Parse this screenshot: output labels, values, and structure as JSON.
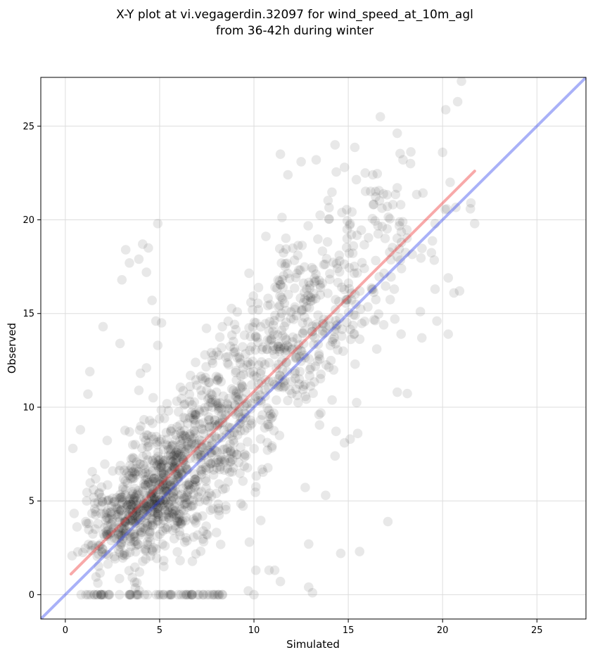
{
  "chart_data": {
    "type": "scatter",
    "title_line1": "X-Y plot at vi.vegagerdin.32097 for wind_speed_at_10m_agl",
    "title_line2": "from 36-42h during winter",
    "xlabel": "Simulated",
    "ylabel": "Observed",
    "xlim": [
      -1.3,
      27.6
    ],
    "ylim": [
      -1.3,
      27.6
    ],
    "xticks": [
      0,
      5,
      10,
      15,
      20,
      25
    ],
    "yticks": [
      0,
      5,
      10,
      15,
      20,
      25
    ],
    "grid": true,
    "point_color": "#000000",
    "point_alpha": 0.09,
    "regression_line": {
      "color": "#ee3333",
      "from": [
        0.3,
        1.1
      ],
      "to": [
        21.7,
        22.6
      ]
    },
    "identity_line": {
      "color": "#3344ee",
      "from": [
        -1.3,
        -1.3
      ],
      "to": [
        27.6,
        27.6
      ]
    },
    "clusters": [
      {
        "cx": 4.5,
        "cy": 5.0,
        "sx": 1.8,
        "sy": 2.0,
        "n": 700,
        "rho": 0.55
      },
      {
        "cx": 8.5,
        "cy": 9.5,
        "sx": 2.3,
        "sy": 3.0,
        "n": 450,
        "rho": 0.65
      },
      {
        "cx": 13.0,
        "cy": 15.0,
        "sx": 2.2,
        "sy": 3.0,
        "n": 320,
        "rho": 0.5
      },
      {
        "cx": 17.5,
        "cy": 19.5,
        "sx": 2.2,
        "sy": 3.0,
        "n": 70,
        "rho": 0.4
      }
    ],
    "points": [
      [
        20.8,
        26.3
      ],
      [
        16.7,
        25.5
      ],
      [
        14.3,
        24.0
      ],
      [
        11.4,
        23.5
      ],
      [
        13.3,
        23.2
      ],
      [
        12.5,
        23.1
      ],
      [
        17.9,
        23.2
      ],
      [
        20.0,
        23.6
      ],
      [
        14.8,
        22.8
      ],
      [
        15.9,
        22.5
      ],
      [
        11.8,
        22.4
      ],
      [
        16.3,
        22.4
      ],
      [
        18.3,
        23.0
      ],
      [
        19.6,
        19.8
      ],
      [
        21.7,
        19.8
      ],
      [
        21.5,
        20.9
      ],
      [
        20.4,
        22.0
      ],
      [
        0.4,
        7.8
      ],
      [
        0.8,
        8.8
      ],
      [
        1.3,
        11.9
      ],
      [
        1.2,
        10.7
      ],
      [
        2.0,
        14.3
      ],
      [
        3.2,
        18.4
      ],
      [
        3.0,
        16.8
      ],
      [
        3.4,
        17.7
      ],
      [
        4.4,
        18.5
      ],
      [
        4.1,
        18.7
      ],
      [
        4.3,
        17.2
      ],
      [
        3.9,
        17.9
      ],
      [
        4.9,
        19.8
      ],
      [
        4.6,
        15.7
      ],
      [
        4.8,
        14.6
      ],
      [
        5.1,
        14.5
      ],
      [
        4.9,
        13.3
      ],
      [
        2.9,
        13.4
      ],
      [
        3.9,
        10.9
      ],
      [
        4.3,
        12.1
      ],
      [
        14.6,
        2.2
      ],
      [
        15.6,
        2.3
      ],
      [
        12.9,
        2.7
      ],
      [
        17.1,
        3.9
      ],
      [
        13.8,
        5.3
      ],
      [
        12.9,
        0.4
      ],
      [
        13.1,
        0.1
      ],
      [
        9.7,
        0.2
      ],
      [
        10.0,
        0.0
      ],
      [
        11.4,
        0.7
      ],
      [
        10.8,
        1.3
      ],
      [
        10.1,
        1.3
      ],
      [
        11.1,
        1.3
      ],
      [
        16.3,
        16.3
      ],
      [
        17.8,
        13.9
      ],
      [
        18.9,
        13.7
      ],
      [
        19.7,
        14.6
      ],
      [
        20.3,
        13.9
      ],
      [
        20.3,
        16.9
      ],
      [
        20.6,
        16.1
      ],
      [
        20.9,
        16.2
      ],
      [
        19.6,
        16.3
      ],
      [
        17.6,
        10.8
      ],
      [
        15.1,
        8.3
      ],
      [
        15.5,
        8.6
      ],
      [
        14.8,
        8.1
      ],
      [
        14.3,
        7.4
      ]
    ]
  }
}
